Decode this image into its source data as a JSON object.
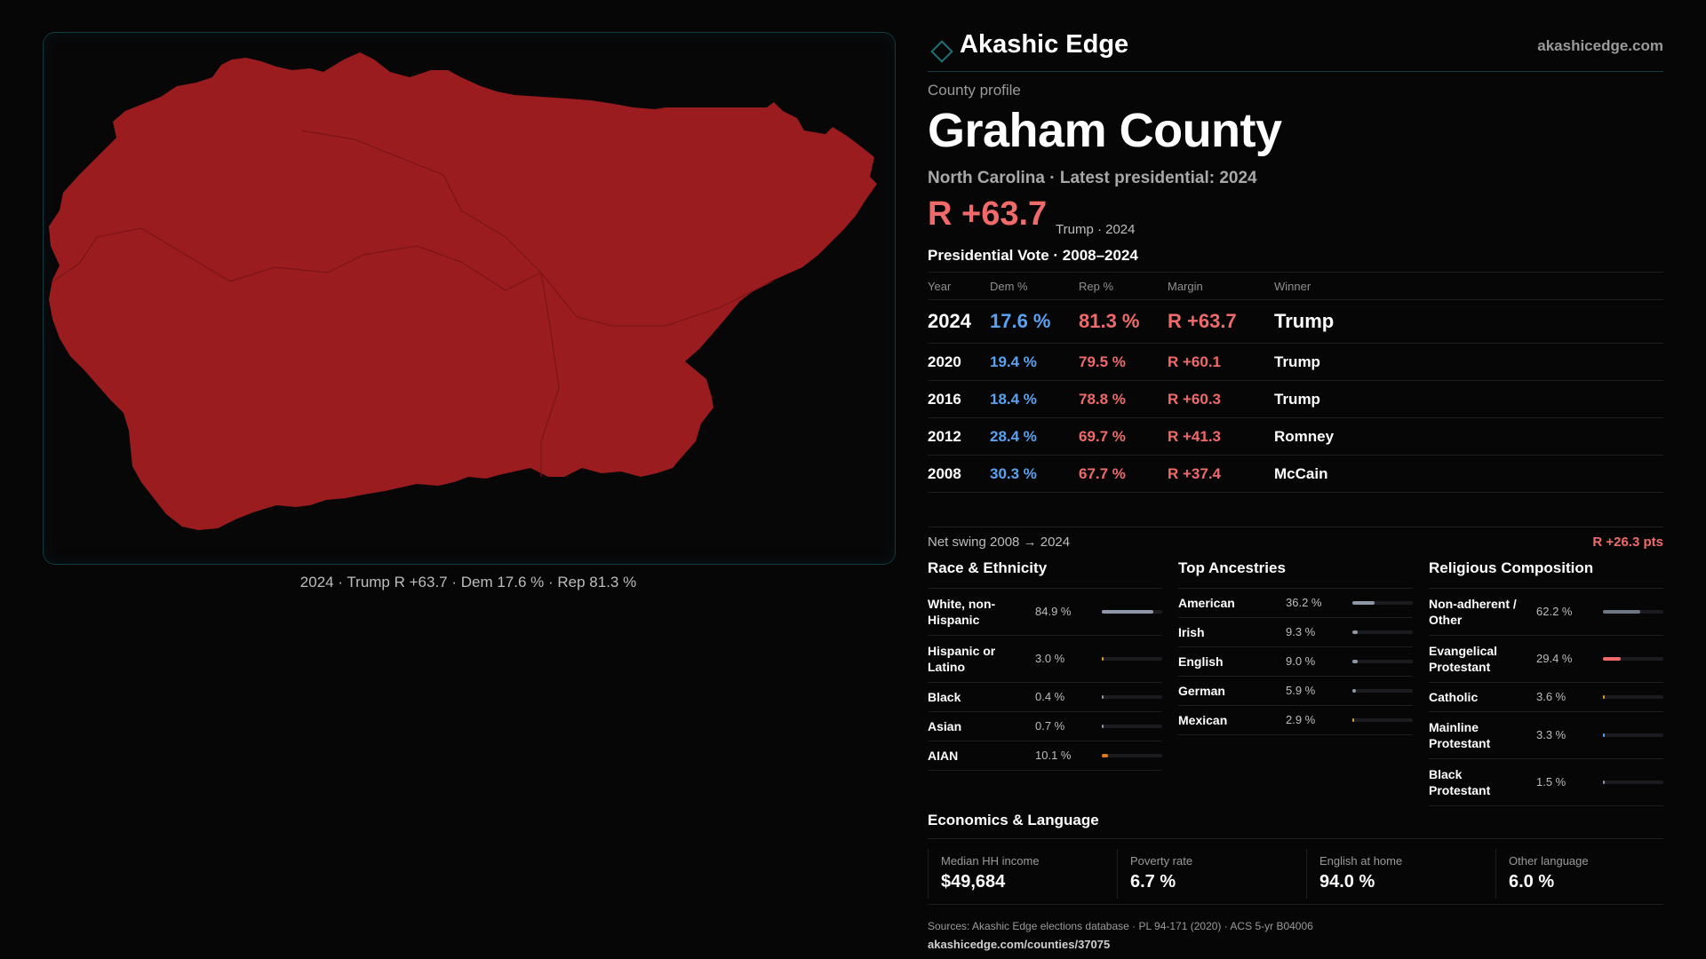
{
  "header": {
    "brand_name": "Akashic Edge",
    "brand_url": "akashicedge.com",
    "brand_icon": "diamond-outline-icon",
    "accent_color": "#1d6f78"
  },
  "profile": {
    "kicker": "County profile",
    "county_name": "Graham County",
    "subline": "North Carolina · Latest presidential: 2024",
    "headline_margin": "R +63.7",
    "headline_note": "Trump · 2024"
  },
  "map": {
    "caption": "2024 · Trump R +63.7 · Dem 17.6 % · Rep 81.3 %",
    "fill_color": "#9b1c1f"
  },
  "vote_table": {
    "title": "Presidential Vote · 2008–2024",
    "headers": {
      "year": "Year",
      "dem": "Dem %",
      "rep": "Rep %",
      "margin": "Margin",
      "winner": "Winner"
    },
    "rows": [
      {
        "year": "2024",
        "dem": "17.6 %",
        "rep": "81.3 %",
        "margin": "R +63.7",
        "winner": "Trump"
      },
      {
        "year": "2020",
        "dem": "19.4 %",
        "rep": "79.5 %",
        "margin": "R +60.1",
        "winner": "Trump"
      },
      {
        "year": "2016",
        "dem": "18.4 %",
        "rep": "78.8 %",
        "margin": "R +60.3",
        "winner": "Trump"
      },
      {
        "year": "2012",
        "dem": "28.4 %",
        "rep": "69.7 %",
        "margin": "R +41.3",
        "winner": "Romney"
      },
      {
        "year": "2008",
        "dem": "30.3 %",
        "rep": "67.7 %",
        "margin": "R +37.4",
        "winner": "McCain"
      }
    ],
    "dem_color": "#5aa2f0",
    "rep_color": "#f06a6a"
  },
  "swing": {
    "label": "Net swing 2008 → 2024",
    "value": "R +26.3 pts"
  },
  "race": {
    "title": "Race & Ethnicity",
    "items": [
      {
        "label": "White, non-Hispanic",
        "pct": "84.9 %",
        "value": 84.9,
        "color": "#8e98a8"
      },
      {
        "label": "Hispanic or Latino",
        "pct": "3.0 %",
        "value": 3.0,
        "color": "#e0a030"
      },
      {
        "label": "Black",
        "pct": "0.4 %",
        "value": 0.4,
        "color": "#8e98a8"
      },
      {
        "label": "Asian",
        "pct": "0.7 %",
        "value": 0.7,
        "color": "#8e98a8"
      },
      {
        "label": "AIAN",
        "pct": "10.1 %",
        "value": 10.1,
        "color": "#e07a20"
      }
    ]
  },
  "ancestry": {
    "title": "Top Ancestries",
    "items": [
      {
        "label": "American",
        "pct": "36.2 %",
        "value": 36.2,
        "color": "#8e98a8"
      },
      {
        "label": "Irish",
        "pct": "9.3 %",
        "value": 9.3,
        "color": "#8e98a8"
      },
      {
        "label": "English",
        "pct": "9.0 %",
        "value": 9.0,
        "color": "#8e98a8"
      },
      {
        "label": "German",
        "pct": "5.9 %",
        "value": 5.9,
        "color": "#8e98a8"
      },
      {
        "label": "Mexican",
        "pct": "2.9 %",
        "value": 2.9,
        "color": "#e0a030"
      }
    ]
  },
  "religion": {
    "title": "Religious Composition",
    "items": [
      {
        "label": "Non-adherent / Other",
        "pct": "62.2 %",
        "value": 62.2,
        "color": "#6e7684"
      },
      {
        "label": "Evangelical Protestant",
        "pct": "29.4 %",
        "value": 29.4,
        "color": "#f06a6a"
      },
      {
        "label": "Catholic",
        "pct": "3.6 %",
        "value": 3.6,
        "color": "#e0a030"
      },
      {
        "label": "Mainline Protestant",
        "pct": "3.3 %",
        "value": 3.3,
        "color": "#5aa2f0"
      },
      {
        "label": "Black Protestant",
        "pct": "1.5 %",
        "value": 1.5,
        "color": "#8e98a8"
      }
    ]
  },
  "economics": {
    "title": "Economics & Language",
    "cards": [
      {
        "label": "Median HH income",
        "value": "$49,684"
      },
      {
        "label": "Poverty rate",
        "value": "6.7 %"
      },
      {
        "label": "English at home",
        "value": "94.0 %"
      },
      {
        "label": "Other language",
        "value": "6.0 %"
      }
    ]
  },
  "footer": {
    "sources": "Sources: Akashic Edge elections database · PL 94-171 (2020) · ACS 5-yr B04006",
    "url": "akashicedge.com/counties/37075"
  }
}
